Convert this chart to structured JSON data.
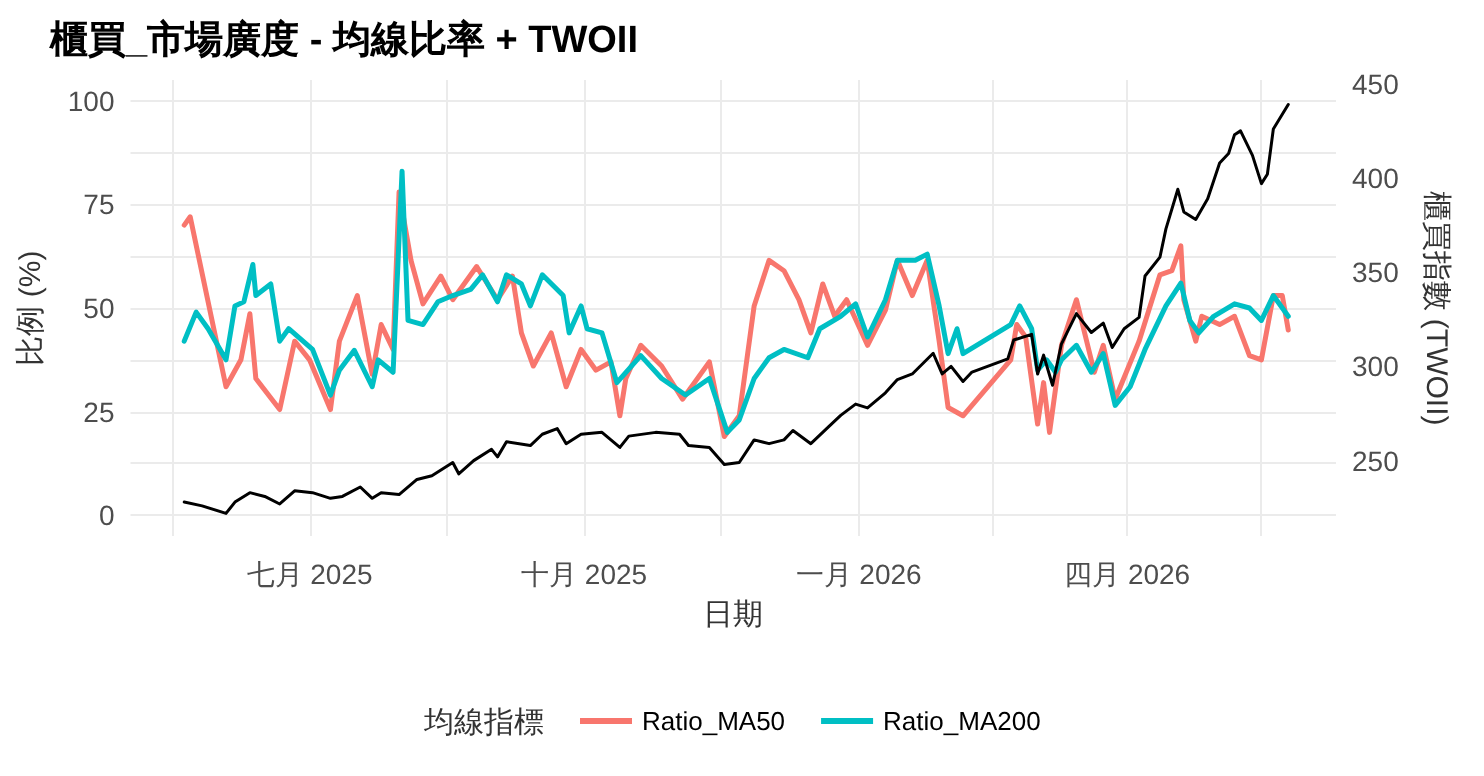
{
  "chart_data": {
    "type": "line",
    "title": "櫃買_市場廣度 - 均線比率 + TWOII",
    "xlabel": "日期",
    "ylabel": "比例 (%)",
    "y2label": "櫃買指數 (TWOII)",
    "legend_title": "均線指標",
    "legend": "bottom",
    "grid": true,
    "xlim": [
      "2025-05-02",
      "2026-06-10"
    ],
    "xticks": [
      {
        "value": "2025-05-16",
        "label": null
      },
      {
        "value": "2025-07-01",
        "label": "七月 2025"
      },
      {
        "value": "2025-08-16",
        "label": null
      },
      {
        "value": "2025-10-01",
        "label": "十月 2025"
      },
      {
        "value": "2025-11-16",
        "label": null
      },
      {
        "value": "2026-01-01",
        "label": "一月 2026"
      },
      {
        "value": "2026-02-15",
        "label": null
      },
      {
        "value": "2026-04-01",
        "label": "四月 2026"
      },
      {
        "value": "2026-05-16",
        "label": null
      }
    ],
    "ylim": [
      -5,
      105
    ],
    "yticks": [
      0,
      {
        "value": 12.5,
        "label": null
      },
      25,
      {
        "value": 37.5,
        "label": null
      },
      50,
      {
        "value": 62.5,
        "label": null
      },
      75,
      {
        "value": 87.5,
        "label": null
      },
      100
    ],
    "y2lim": [
      210,
      452
    ],
    "y2ticks": [
      250,
      300,
      350,
      400,
      450
    ],
    "series": [
      {
        "name": "Ratio_MA50",
        "color": "#f8766d",
        "x": [
          "2025-05-20",
          "2025-05-22",
          "2025-06-03",
          "2025-06-08",
          "2025-06-11",
          "2025-06-13",
          "2025-06-21",
          "2025-06-26",
          "2025-07-01",
          "2025-07-08",
          "2025-07-11",
          "2025-07-17",
          "2025-07-22",
          "2025-07-25",
          "2025-07-29",
          "2025-07-31",
          "2025-08-04",
          "2025-08-08",
          "2025-08-14",
          "2025-08-18",
          "2025-08-26",
          "2025-09-02",
          "2025-09-07",
          "2025-09-10",
          "2025-09-14",
          "2025-09-20",
          "2025-09-25",
          "2025-09-30",
          "2025-10-05",
          "2025-10-10",
          "2025-10-13",
          "2025-10-15",
          "2025-10-20",
          "2025-10-27",
          "2025-11-03",
          "2025-11-12",
          "2025-11-17",
          "2025-11-22",
          "2025-11-27",
          "2025-12-02",
          "2025-12-07",
          "2025-12-12",
          "2025-12-16",
          "2025-12-20",
          "2025-12-24",
          "2025-12-28",
          "2026-01-04",
          "2026-01-10",
          "2026-01-14",
          "2026-01-19",
          "2026-01-24",
          "2026-01-28",
          "2026-01-31",
          "2026-02-05",
          "2026-02-21",
          "2026-02-23",
          "2026-02-26",
          "2026-03-02",
          "2026-03-04",
          "2026-03-06",
          "2026-03-10",
          "2026-03-15",
          "2026-03-21",
          "2026-03-24",
          "2026-03-28",
          "2026-04-05",
          "2026-04-12",
          "2026-04-16",
          "2026-04-19",
          "2026-04-20",
          "2026-04-24",
          "2026-04-26",
          "2026-05-02",
          "2026-05-07",
          "2026-05-12",
          "2026-05-16",
          "2026-05-20",
          "2026-05-23",
          "2026-05-25"
        ],
        "values": [
          70,
          72,
          31,
          37.5,
          48.6,
          33,
          25.5,
          42,
          37.5,
          25.5,
          42,
          53,
          34,
          46,
          40,
          78,
          61.5,
          51,
          57.7,
          52,
          60,
          52,
          57.7,
          44,
          36,
          44,
          31,
          40,
          35,
          37,
          24,
          33,
          41,
          36,
          28,
          37,
          19,
          24,
          50.5,
          61.5,
          59,
          52,
          44,
          55.8,
          48,
          52,
          41,
          49.5,
          61.5,
          53,
          61.5,
          42,
          26,
          24,
          37.5,
          46,
          43,
          22,
          32,
          20,
          41,
          52,
          34.5,
          41,
          28,
          42,
          58,
          59,
          65,
          52,
          42,
          48,
          46,
          48,
          38.5,
          37.5,
          53,
          53,
          44.7
        ]
      },
      {
        "name": "Ratio_MA200",
        "color": "#00bfc4",
        "x": [
          "2025-05-20",
          "2025-05-24",
          "2025-05-28",
          "2025-06-03",
          "2025-06-06",
          "2025-06-09",
          "2025-06-12",
          "2025-06-13",
          "2025-06-18",
          "2025-06-21",
          "2025-06-24",
          "2025-07-02",
          "2025-07-08",
          "2025-07-11",
          "2025-07-16",
          "2025-07-22",
          "2025-07-24",
          "2025-07-29",
          "2025-08-01",
          "2025-08-03",
          "2025-08-08",
          "2025-08-13",
          "2025-08-18",
          "2025-08-24",
          "2025-08-28",
          "2025-09-02",
          "2025-09-05",
          "2025-09-10",
          "2025-09-13",
          "2025-09-17",
          "2025-09-24",
          "2025-09-26",
          "2025-09-30",
          "2025-10-02",
          "2025-10-07",
          "2025-10-12",
          "2025-10-20",
          "2025-10-27",
          "2025-11-04",
          "2025-11-12",
          "2025-11-18",
          "2025-11-22",
          "2025-11-27",
          "2025-12-02",
          "2025-12-07",
          "2025-12-15",
          "2025-12-19",
          "2025-12-26",
          "2025-12-31",
          "2026-01-04",
          "2026-01-10",
          "2026-01-14",
          "2026-01-20",
          "2026-01-24",
          "2026-01-28",
          "2026-01-31",
          "2026-02-03",
          "2026-02-05",
          "2026-02-21",
          "2026-02-24",
          "2026-02-28",
          "2026-03-02",
          "2026-03-05",
          "2026-03-08",
          "2026-03-10",
          "2026-03-15",
          "2026-03-20",
          "2026-03-24",
          "2026-03-28",
          "2026-04-02",
          "2026-04-07",
          "2026-04-14",
          "2026-04-19",
          "2026-04-22",
          "2026-04-25",
          "2026-04-30",
          "2026-05-07",
          "2026-05-12",
          "2026-05-16",
          "2026-05-20",
          "2026-05-25"
        ],
        "values": [
          42,
          49,
          45,
          37.5,
          50.5,
          51.5,
          60.5,
          53,
          55.8,
          42,
          45,
          40,
          29,
          35,
          39.8,
          31,
          37.5,
          34.5,
          83,
          47,
          46,
          51.5,
          53,
          54.5,
          58,
          51.5,
          58,
          55.8,
          50.5,
          58,
          53,
          44,
          50.5,
          45,
          44,
          32,
          38.5,
          33,
          29,
          33,
          20,
          23,
          33,
          38,
          40,
          38,
          45,
          48,
          51,
          43,
          52,
          61.5,
          61.5,
          63,
          50.5,
          39,
          45,
          39,
          46,
          50.5,
          45,
          35,
          37.5,
          34.5,
          37.5,
          41,
          34.5,
          39,
          26.5,
          31,
          40,
          50.5,
          56,
          47,
          44,
          48,
          51,
          50,
          47,
          53,
          48
        ]
      },
      {
        "color": "#000000",
        "axis": "y2",
        "x": [
          "2025-05-20",
          "2025-05-26",
          "2025-06-03",
          "2025-06-06",
          "2025-06-11",
          "2025-06-16",
          "2025-06-21",
          "2025-06-26",
          "2025-07-02",
          "2025-07-08",
          "2025-07-12",
          "2025-07-18",
          "2025-07-22",
          "2025-07-25",
          "2025-07-31",
          "2025-08-06",
          "2025-08-11",
          "2025-08-18",
          "2025-08-20",
          "2025-08-25",
          "2025-08-31",
          "2025-09-02",
          "2025-09-05",
          "2025-09-13",
          "2025-09-17",
          "2025-09-22",
          "2025-09-25",
          "2025-09-30",
          "2025-10-07",
          "2025-10-13",
          "2025-10-16",
          "2025-10-25",
          "2025-11-02",
          "2025-11-05",
          "2025-11-12",
          "2025-11-17",
          "2025-11-22",
          "2025-11-27",
          "2025-12-02",
          "2025-12-07",
          "2025-12-10",
          "2025-12-16",
          "2025-12-22",
          "2025-12-26",
          "2025-12-31",
          "2026-01-04",
          "2026-01-10",
          "2026-01-14",
          "2026-01-19",
          "2026-01-26",
          "2026-01-29",
          "2026-02-01",
          "2026-02-05",
          "2026-02-08",
          "2026-02-20",
          "2026-02-22",
          "2026-02-28",
          "2026-03-02",
          "2026-03-04",
          "2026-03-07",
          "2026-03-10",
          "2026-03-15",
          "2026-03-20",
          "2026-03-24",
          "2026-03-27",
          "2026-03-31",
          "2026-04-05",
          "2026-04-07",
          "2026-04-12",
          "2026-04-14",
          "2026-04-18",
          "2026-04-20",
          "2026-04-24",
          "2026-04-28",
          "2026-05-02",
          "2026-05-05",
          "2026-05-07",
          "2026-05-09",
          "2026-05-13",
          "2026-05-16",
          "2026-05-18",
          "2026-05-20",
          "2026-05-25"
        ],
        "values": [
          228,
          226,
          222,
          228,
          233,
          231,
          227,
          234,
          233,
          230,
          231,
          236,
          230,
          233,
          232,
          240,
          242,
          249,
          243,
          250,
          256,
          252,
          260,
          258,
          264,
          267,
          259,
          264,
          265,
          257,
          263,
          265,
          264,
          258,
          257,
          248,
          249,
          261,
          259,
          261,
          266,
          259,
          268,
          274,
          280,
          278,
          286,
          293,
          296,
          307,
          296,
          300,
          292,
          297,
          304,
          314,
          317,
          296,
          306,
          290,
          312,
          328,
          318,
          323,
          310,
          320,
          326,
          348,
          358,
          373,
          394,
          382,
          378,
          389,
          408,
          413,
          423,
          425,
          412,
          397,
          402,
          426,
          439
        ]
      }
    ]
  }
}
